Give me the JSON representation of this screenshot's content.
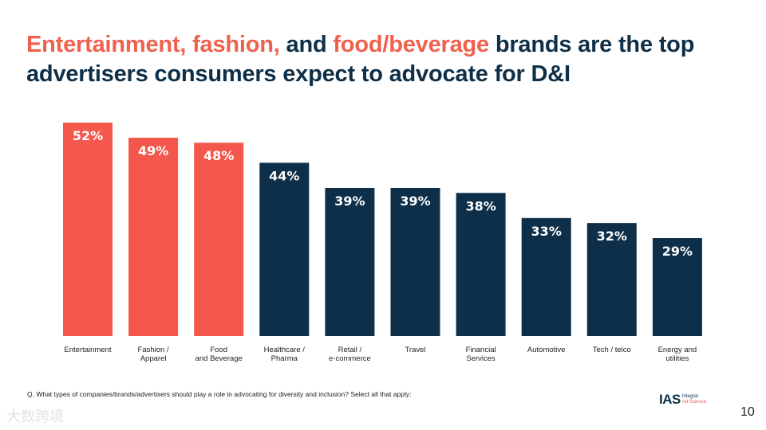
{
  "title": {
    "part1": "Entertainment, fashion,",
    "part2": " and ",
    "part3": "food/beverage",
    "part4": " brands are the top advertisers consumers expect to advocate for D&I"
  },
  "colors": {
    "highlight": "#f4574b",
    "primary": "#0d2f49"
  },
  "chart_data": {
    "type": "bar",
    "title": "Entertainment, fashion, and food/beverage brands are the top advertisers consumers expect to advocate for D&I",
    "xlabel": "",
    "ylabel": "",
    "categories": [
      [
        "Entertainment"
      ],
      [
        "Fashion /",
        "Apparel"
      ],
      [
        "Food",
        "and Beverage"
      ],
      [
        "Healthcare /",
        "Pharma"
      ],
      [
        "Retail /",
        "e-commerce"
      ],
      [
        "Travel"
      ],
      [
        "Financial",
        "Services"
      ],
      [
        "Automotive"
      ],
      [
        "Tech / telco"
      ],
      [
        "Energy and",
        "utilities"
      ]
    ],
    "values": [
      52,
      49,
      48,
      44,
      39,
      39,
      38,
      33,
      32,
      29
    ],
    "data_labels": [
      "52%",
      "49%",
      "48%",
      "44%",
      "39%",
      "39%",
      "38%",
      "33%",
      "32%",
      "29%"
    ],
    "highlighted": [
      true,
      true,
      true,
      false,
      false,
      false,
      false,
      false,
      false,
      false
    ],
    "ylim": [
      9.5,
      52
    ],
    "grid": false,
    "legend": "none"
  },
  "footer": {
    "question": "Q. What types of companies/brands/advertisers should play a role in advocating for diversity and inclusion? Select all that apply:",
    "logo_main": "IAS",
    "logo_sub1": "Integral",
    "logo_sub2": "Ad Science",
    "page_number": "10",
    "watermark": "大数跨境"
  }
}
